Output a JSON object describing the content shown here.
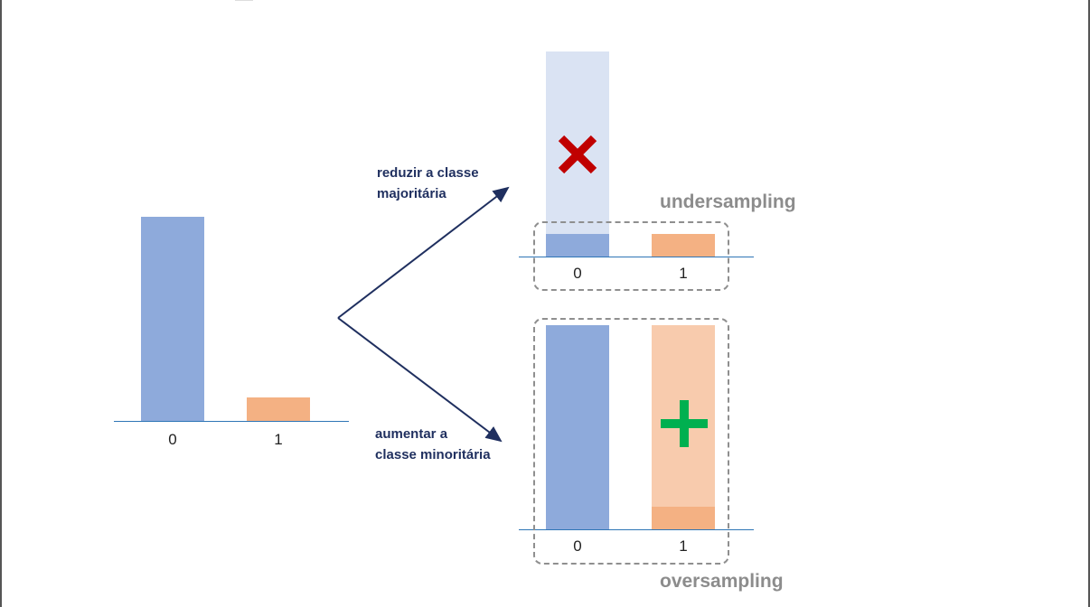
{
  "chart_data": [
    {
      "type": "bar",
      "categories": [
        "0",
        "1"
      ],
      "values": [
        10,
        1.2
      ],
      "title": "",
      "xlabel": "",
      "ylabel": ""
    },
    {
      "type": "bar",
      "categories": [
        "0",
        "1"
      ],
      "values": [
        1.2,
        1.2
      ],
      "removed_values": [
        10,
        0
      ],
      "label": "undersampling"
    },
    {
      "type": "bar",
      "categories": [
        "0",
        "1"
      ],
      "values": [
        10,
        10
      ],
      "original_values": [
        10,
        1.2
      ],
      "label": "oversampling"
    }
  ],
  "original": {
    "tick_0": "0",
    "tick_1": "1"
  },
  "arrows": {
    "up_label_line1": "reduzir a classe",
    "up_label_line2": "majoritária",
    "down_label_line1": "aumentar a",
    "down_label_line2": "classe minoritária"
  },
  "undersampling": {
    "title": "undersampling",
    "tick_0": "0",
    "tick_1": "1",
    "remove_icon": "x-mark-icon"
  },
  "oversampling": {
    "title": "oversampling",
    "tick_0": "0",
    "tick_1": "1",
    "add_icon": "plus-icon"
  },
  "colors": {
    "class_0": "#8eaadb",
    "class_1": "#f4b183",
    "class_0_removed": "#dae3f3",
    "class_1_added": "#f8cbad",
    "axis": "#2e75b6",
    "arrow": "#1f2f5f",
    "remove": "#c00000",
    "add": "#00b050"
  }
}
